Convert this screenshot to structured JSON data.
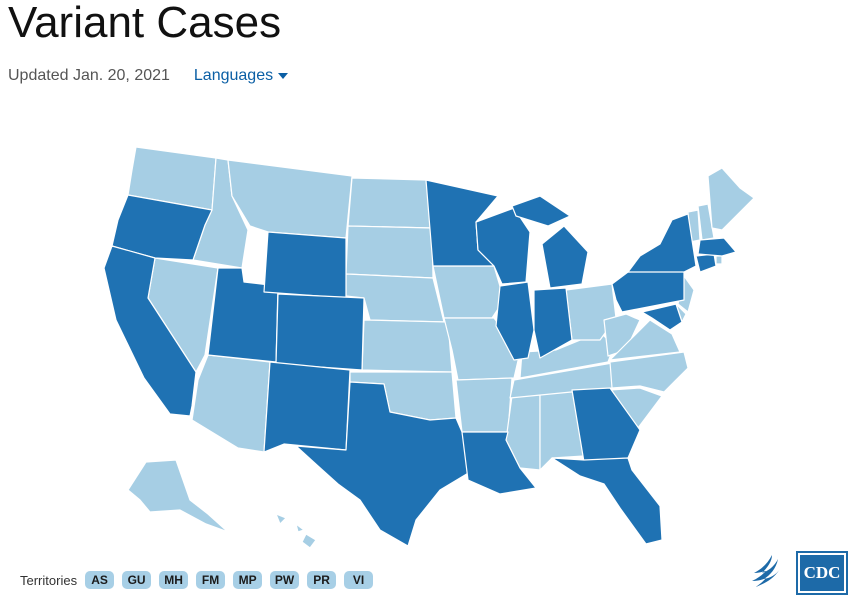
{
  "title": "Variant Cases",
  "updated": "Updated Jan. 20, 2021",
  "languages_label": "Languages",
  "territories_label": "Territories",
  "territories": [
    "AS",
    "GU",
    "MH",
    "FM",
    "MP",
    "PW",
    "PR",
    "VI"
  ],
  "colors": {
    "reported": "#1f72b3",
    "none": "#a6cee4",
    "border": "#ffffff",
    "link": "#0b5fa5"
  },
  "states_with_cases": [
    "WA?no",
    "OR",
    "CA",
    "UT",
    "WY",
    "CO",
    "NM",
    "TX",
    "MN",
    "WI",
    "IL",
    "IN",
    "MI",
    "GA",
    "FL",
    "LA",
    "PA",
    "NY",
    "CT",
    "MA",
    "MD"
  ],
  "logo_text": "CDC"
}
